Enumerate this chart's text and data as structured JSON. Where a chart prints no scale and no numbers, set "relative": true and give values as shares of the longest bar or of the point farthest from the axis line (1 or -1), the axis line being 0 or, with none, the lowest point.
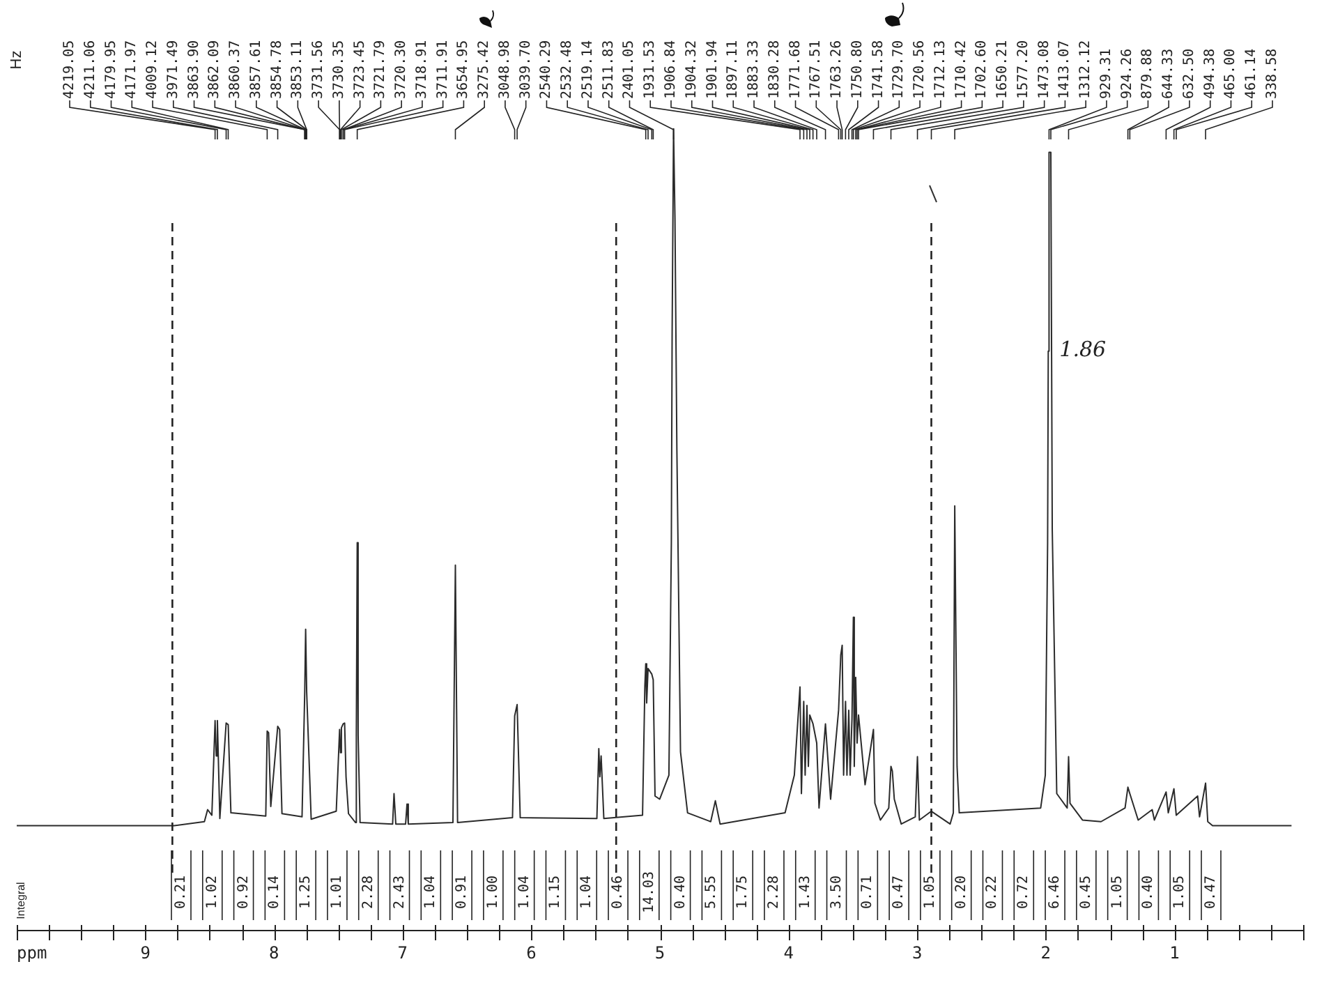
{
  "chart_data": {
    "type": "line",
    "relative": true,
    "color": "#2b2b2b",
    "xlabel": "ppm",
    "xlim": [
      10,
      0
    ],
    "xticks": [
      {
        "value": 10,
        "label": null
      },
      {
        "value": 9.75,
        "label": null
      },
      {
        "value": 9.5,
        "label": null
      },
      {
        "value": 9.25,
        "label": null
      },
      9,
      {
        "value": 8.75,
        "label": null
      },
      {
        "value": 8.5,
        "label": null
      },
      {
        "value": 8.25,
        "label": null
      },
      8,
      {
        "value": 7.75,
        "label": null
      },
      {
        "value": 7.5,
        "label": null
      },
      {
        "value": 7.25,
        "label": null
      },
      7,
      {
        "value": 6.75,
        "label": null
      },
      {
        "value": 6.5,
        "label": null
      },
      {
        "value": 6.25,
        "label": null
      },
      6,
      {
        "value": 5.75,
        "label": null
      },
      {
        "value": 5.5,
        "label": null
      },
      {
        "value": 5.25,
        "label": null
      },
      5,
      {
        "value": 4.75,
        "label": null
      },
      {
        "value": 4.5,
        "label": null
      },
      {
        "value": 4.25,
        "label": null
      },
      4,
      {
        "value": 3.75,
        "label": null
      },
      {
        "value": 3.5,
        "label": null
      },
      {
        "value": 3.25,
        "label": null
      },
      3,
      {
        "value": 2.75,
        "label": null
      },
      {
        "value": 2.5,
        "label": null
      },
      {
        "value": 2.25,
        "label": null
      },
      2,
      {
        "value": 1.75,
        "label": null
      },
      {
        "value": 1.5,
        "label": null
      },
      {
        "value": 1.25,
        "label": null
      },
      1,
      {
        "value": 0.75,
        "label": null
      },
      {
        "value": 0.5,
        "label": null
      },
      {
        "value": 0.25,
        "label": null
      },
      {
        "value": 0,
        "label": null
      }
    ],
    "x": [
      10,
      8.776,
      8.541,
      8.516,
      8.483,
      8.458,
      8.449,
      8.44,
      8.421,
      8.372,
      8.356,
      8.335,
      8.064,
      8.053,
      8.042,
      8.025,
      7.971,
      7.956,
      7.938,
      7.782,
      7.761,
      7.754,
      7.746,
      7.711,
      7.516,
      7.49,
      7.483,
      7.476,
      7.462,
      7.451,
      7.44,
      7.421,
      7.367,
      7.36,
      7.353,
      7.346,
      7.331,
      7.078,
      7.067,
      7.053,
      6.977,
      6.966,
      6.956,
      6.609,
      6.59,
      6.573,
      6.146,
      6.129,
      6.11,
      6.086,
      5.49,
      5.475,
      5.467,
      5.457,
      5.436,
      5.135,
      5.117,
      5.11,
      5.103,
      5.092,
      5.063,
      5.052,
      5.038,
      5.002,
      4.93,
      4.911,
      4.905,
      4.894,
      4.883,
      4.868,
      4.84,
      4.785,
      4.605,
      4.569,
      4.532,
      4.027,
      3.955,
      3.911,
      3.9,
      3.882,
      3.871,
      3.857,
      3.846,
      3.835,
      3.81,
      3.781,
      3.763,
      3.713,
      3.673,
      3.611,
      3.594,
      3.583,
      3.572,
      3.557,
      3.546,
      3.532,
      3.521,
      3.507,
      3.496,
      3.489,
      3.478,
      3.467,
      3.456,
      3.405,
      3.34,
      3.329,
      3.286,
      3.221,
      3.204,
      3.193,
      3.178,
      3.124,
      3.015,
      2.998,
      2.983,
      2.89,
      2.744,
      2.719,
      2.708,
      2.69,
      2.673,
      2.04,
      2.004,
      1.986,
      1.981,
      1.975,
      1.961,
      1.95,
      1.915,
      1.834,
      1.823,
      1.812,
      1.715,
      1.571,
      1.384,
      1.362,
      1.347,
      1.282,
      1.173,
      1.156,
      1.065,
      1.048,
      1.004,
      0.986,
      0.82,
      0.805,
      0.758,
      0.741,
      0.704,
      0.09
    ],
    "values": [
      0.13,
      0.13,
      0.135,
      0.15,
      0.143,
      0.261,
      0.217,
      0.261,
      0.139,
      0.258,
      0.256,
      0.146,
      0.142,
      0.248,
      0.246,
      0.154,
      0.254,
      0.25,
      0.145,
      0.141,
      0.297,
      0.375,
      0.297,
      0.138,
      0.148,
      0.25,
      0.221,
      0.252,
      0.257,
      0.258,
      0.191,
      0.145,
      0.134,
      0.243,
      0.483,
      0.243,
      0.134,
      0.132,
      0.17,
      0.132,
      0.132,
      0.157,
      0.132,
      0.134,
      0.455,
      0.134,
      0.14,
      0.267,
      0.281,
      0.14,
      0.139,
      0.226,
      0.191,
      0.217,
      0.139,
      0.143,
      0.304,
      0.332,
      0.283,
      0.326,
      0.319,
      0.312,
      0.167,
      0.163,
      0.193,
      0.483,
      0.744,
      1,
      0.887,
      0.598,
      0.222,
      0.146,
      0.135,
      0.161,
      0.132,
      0.146,
      0.193,
      0.303,
      0.17,
      0.285,
      0.193,
      0.28,
      0.204,
      0.268,
      0.257,
      0.233,
      0.152,
      0.257,
      0.163,
      0.274,
      0.343,
      0.355,
      0.193,
      0.285,
      0.193,
      0.274,
      0.193,
      0.263,
      0.39,
      0.204,
      0.315,
      0.233,
      0.268,
      0.181,
      0.25,
      0.158,
      0.137,
      0.152,
      0.204,
      0.198,
      0.163,
      0.132,
      0.141,
      0.216,
      0.137,
      0.148,
      0.132,
      0.146,
      0.529,
      0.204,
      0.146,
      0.152,
      0.193,
      0.483,
      0.722,
      0.97,
      0.97,
      0.5,
      0.17,
      0.152,
      0.216,
      0.158,
      0.137,
      0.135,
      0.152,
      0.178,
      0.17,
      0.137,
      0.15,
      0.137,
      0.172,
      0.146,
      0.176,
      0.143,
      0.167,
      0.141,
      0.183,
      0.135,
      0.13,
      0.13
    ],
    "ref_lines": [
      {
        "axis": "x",
        "value": 8.79,
        "line_style": "dashed",
        "color": "#222222"
      },
      {
        "axis": "x",
        "value": 5.34,
        "line_style": "dashed",
        "color": "#222222"
      },
      {
        "axis": "x",
        "value": 2.89,
        "line_style": "dashed",
        "color": "#222222"
      }
    ],
    "annotations": [
      "Hz",
      {
        "text": "4219.05",
        "x": 8.458
      },
      {
        "text": "4211.06",
        "x": 8.44
      },
      {
        "text": "4179.95",
        "x": 8.372
      },
      {
        "text": "4171.97",
        "x": 8.356
      },
      {
        "text": "4009.12",
        "x": 8.053
      },
      {
        "text": "3971.49",
        "x": 7.971
      },
      {
        "text": "3863.90",
        "x": 7.761
      },
      {
        "text": "3862.09",
        "x": 7.761
      },
      {
        "text": "3860.37",
        "x": 7.754
      },
      {
        "text": "3857.61",
        "x": 7.754
      },
      {
        "text": "3854.78",
        "x": 7.746
      },
      {
        "text": "3853.11",
        "x": 7.746
      },
      {
        "text": "3731.56",
        "x": 7.49
      },
      {
        "text": "3730.35",
        "x": 7.49
      },
      {
        "text": "3723.45",
        "x": 7.483
      },
      {
        "text": "3721.79",
        "x": 7.476
      },
      {
        "text": "3720.30",
        "x": 7.462
      },
      {
        "text": "3718.91",
        "x": 7.462
      },
      {
        "text": "3711.91",
        "x": 7.451
      },
      {
        "text": "3654.95",
        "x": 7.353
      },
      {
        "text": "3275.42",
        "x": 6.59
      },
      {
        "text": "3048.98",
        "x": 6.129
      },
      {
        "text": "3039.70",
        "x": 6.11
      },
      {
        "text": "2540.29",
        "x": 5.11
      },
      {
        "text": "2532.48",
        "x": 5.092
      },
      {
        "text": "2519.14",
        "x": 5.063
      },
      {
        "text": "2511.83",
        "x": 5.052
      },
      {
        "text": "2401.05",
        "x": 4.894
      },
      {
        "text": "1931.53",
        "x": 3.911
      },
      {
        "text": "1906.84",
        "x": 3.882
      },
      {
        "text": "1904.32",
        "x": 3.857
      },
      {
        "text": "1901.94",
        "x": 3.835
      },
      {
        "text": "1897.11",
        "x": 3.81
      },
      {
        "text": "1883.33",
        "x": 3.781
      },
      {
        "text": "1830.28",
        "x": 3.713
      },
      {
        "text": "1771.68",
        "x": 3.611
      },
      {
        "text": "1767.51",
        "x": 3.594
      },
      {
        "text": "1763.26",
        "x": 3.583
      },
      {
        "text": "1750.80",
        "x": 3.557
      },
      {
        "text": "1741.58",
        "x": 3.532
      },
      {
        "text": "1729.70",
        "x": 3.507
      },
      {
        "text": "1720.56",
        "x": 3.496
      },
      {
        "text": "1712.13",
        "x": 3.478
      },
      {
        "text": "1710.42",
        "x": 3.467
      },
      {
        "text": "1702.60",
        "x": 3.456
      },
      {
        "text": "1650.21",
        "x": 3.34
      },
      {
        "text": "1577.20",
        "x": 3.204
      },
      {
        "text": "1473.08",
        "x": 2.998
      },
      {
        "text": "1413.07",
        "x": 2.89
      },
      {
        "text": "1312.12",
        "x": 2.708
      },
      {
        "text": "929.31",
        "x": 1.975
      },
      {
        "text": "924.26",
        "x": 1.961
      },
      {
        "text": "879.88",
        "x": 1.823
      },
      {
        "text": "644.33",
        "x": 1.362
      },
      {
        "text": "632.50",
        "x": 1.347
      },
      {
        "text": "494.38",
        "x": 1.065
      },
      {
        "text": "465.00",
        "x": 1.004
      },
      {
        "text": "461.14",
        "x": 0.986
      },
      {
        "text": "338.58",
        "x": 0.758
      },
      "Integral",
      "0.21",
      "1.02",
      "0.92",
      "0.14",
      "1.25",
      "1.01",
      "2.28",
      "2.43",
      "1.04",
      "0.91",
      "1.00",
      "1.04",
      "1.15",
      "1.04",
      "0.46",
      "14.03",
      "0.40",
      "5.55",
      "1.75",
      "2.28",
      "1.43",
      "3.50",
      "0.71",
      "0.47",
      "1.05",
      "0.20",
      "0.22",
      "0.72",
      "6.46",
      "0.45",
      "1.05",
      "0.40",
      "1.05",
      "0.47",
      {
        "text": "1.86",
        "x": 1.981,
        "y": 0.722
      }
    ]
  }
}
